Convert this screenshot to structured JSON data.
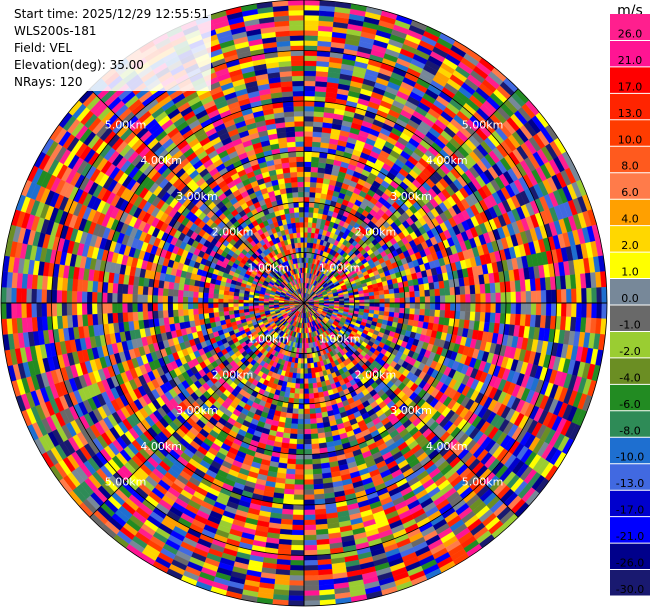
{
  "info": {
    "start_time": "Start time: 2025/12/29 12:55:51",
    "instrument": "WLS200s-181",
    "field": "Field: VEL",
    "elevation": "Elevation(deg): 35.00",
    "nrays": "NRays: 120"
  },
  "chart_data": {
    "type": "heatmap",
    "projection": "polar-ppi",
    "field": "VEL",
    "units": "m/s",
    "n_rays": 120,
    "n_gates": 60,
    "max_range_km": 6,
    "range_rings": [
      {
        "range_km": 1,
        "label": "1.00km"
      },
      {
        "range_km": 2,
        "label": "2.00km"
      },
      {
        "range_km": 3,
        "label": "3.00km"
      },
      {
        "range_km": 4,
        "label": "4.00km"
      },
      {
        "range_km": 5,
        "label": "5.00km"
      }
    ],
    "colorbar": {
      "unit_label": "m/s",
      "ticks": [
        "26.0",
        "21.0",
        "17.0",
        "13.0",
        "10.0",
        "8.0",
        "6.0",
        "4.0",
        "2.0",
        "1.0",
        "0.0",
        "-1.0",
        "-2.0",
        "-4.0",
        "-6.0",
        "-8.0",
        "-10.0",
        "-13.0",
        "-17.0",
        "-21.0",
        "-26.0",
        "-30.0"
      ],
      "colors": [
        "#ff1f8e",
        "#ff1493",
        "#ff0000",
        "#ff2400",
        "#ff3c00",
        "#ff5a1e",
        "#ff7b4a",
        "#ffa000",
        "#ffd700",
        "#ffff00",
        "#778899",
        "#696969",
        "#9acd32",
        "#6b8e23",
        "#228b22",
        "#2e8b57",
        "#1e6fd0",
        "#4169e1",
        "#0000cd",
        "#0000ff",
        "#00008b",
        "#191970"
      ]
    },
    "grid": true
  }
}
